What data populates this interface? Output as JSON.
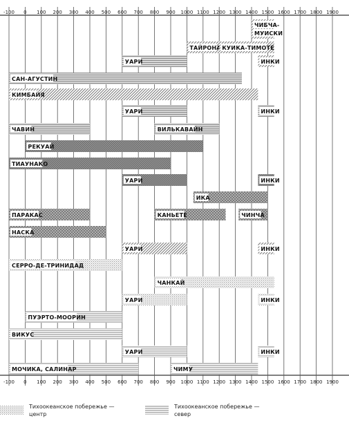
{
  "chart_data": {
    "type": "timeline",
    "x_ticks": [
      -100,
      0,
      100,
      200,
      300,
      400,
      500,
      600,
      700,
      800,
      900,
      1000,
      1100,
      1200,
      1300,
      1400,
      1500,
      1600,
      1700,
      1800,
      1900
    ],
    "rows": [
      {
        "bars": [
          {
            "label": "ЧИБЧА-МУИСКИ",
            "start": 1400,
            "end": 1540,
            "pattern": "hatch"
          }
        ]
      },
      {
        "bars": [
          {
            "label": "ТАЙРОНА",
            "start": 1000,
            "end": 1240,
            "pattern": "hatch"
          },
          {
            "label": "КУИКА-ТИМОТЕ",
            "start": 1200,
            "end": 1540,
            "pattern": "hatch"
          }
        ]
      },
      {
        "bars": [
          {
            "label": "УАРИ",
            "start": 600,
            "end": 1000,
            "pattern": "stripes"
          },
          {
            "label": "ИНКИ",
            "start": 1440,
            "end": 1540,
            "pattern": "hatch"
          }
        ]
      },
      {
        "bars": [
          {
            "label": "САН-АГУСТИН",
            "start": -100,
            "end": 1340,
            "pattern": "stripes"
          }
        ]
      },
      {
        "bars": [
          {
            "label": "КИМБАЙЯ",
            "start": -100,
            "end": 1440,
            "pattern": "hatch"
          }
        ]
      },
      {
        "bars": [
          {
            "label": "УАРИ",
            "start": 600,
            "end": 1000,
            "pattern": "stripes"
          },
          {
            "label": "ИНКИ",
            "start": 1440,
            "end": 1540,
            "pattern": "stripes"
          }
        ]
      },
      {
        "bars": [
          {
            "label": "ЧАВИН",
            "start": -100,
            "end": 400,
            "pattern": "stripes"
          },
          {
            "label": "ВИЛЬКАВАЙН",
            "start": 800,
            "end": 1200,
            "pattern": "stripes"
          }
        ]
      },
      {
        "bars": [
          {
            "label": "РЕКУАЙ",
            "start": 0,
            "end": 1100,
            "pattern": "dark"
          }
        ]
      },
      {
        "bars": [
          {
            "label": "ТИАУНАКО",
            "start": -100,
            "end": 900,
            "pattern": "dark"
          }
        ]
      },
      {
        "bars": [
          {
            "label": "УАРИ",
            "start": 600,
            "end": 1000,
            "pattern": "dark"
          },
          {
            "label": "ИНКИ",
            "start": 1440,
            "end": 1540,
            "pattern": "dark"
          }
        ]
      },
      {
        "bars": [
          {
            "label": "ИКА",
            "start": 1040,
            "end": 1500,
            "pattern": "checker"
          }
        ]
      },
      {
        "bars": [
          {
            "label": "ПАРАКАС",
            "start": -100,
            "end": 400,
            "pattern": "checker"
          },
          {
            "label": "КАНЬЕТЕ",
            "start": 800,
            "end": 1240,
            "pattern": "checker"
          },
          {
            "label": "ЧИНЧА",
            "start": 1320,
            "end": 1500,
            "pattern": "checker"
          }
        ]
      },
      {
        "bars": [
          {
            "label": "НАСКА",
            "start": -100,
            "end": 500,
            "pattern": "checker"
          }
        ]
      },
      {
        "bars": [
          {
            "label": "УАРИ",
            "start": 600,
            "end": 1000,
            "pattern": "hatch"
          },
          {
            "label": "ИНКИ",
            "start": 1440,
            "end": 1540,
            "pattern": "hatch"
          }
        ]
      },
      {
        "bars": [
          {
            "label": "СЕРРО-ДЕ-ТРИНИДАД",
            "start": -100,
            "end": 600,
            "pattern": "dots"
          }
        ]
      },
      {
        "bars": [
          {
            "label": "ЧАНКАЙ",
            "start": 800,
            "end": 1540,
            "pattern": "dots"
          }
        ]
      },
      {
        "bars": [
          {
            "label": "УАРИ",
            "start": 600,
            "end": 1000,
            "pattern": "dots"
          },
          {
            "label": "ИНКИ",
            "start": 1440,
            "end": 1540,
            "pattern": "dots"
          }
        ]
      },
      {
        "bars": [
          {
            "label": "ПУЭРТО-МООРИН",
            "start": 0,
            "end": 600,
            "pattern": "lines"
          }
        ]
      },
      {
        "bars": [
          {
            "label": "ВИКУС",
            "start": -100,
            "end": 600,
            "pattern": "lines"
          }
        ]
      },
      {
        "bars": [
          {
            "label": "УАРИ",
            "start": 600,
            "end": 1000,
            "pattern": "lines"
          },
          {
            "label": "ИНКИ",
            "start": 1440,
            "end": 1540,
            "pattern": "lines"
          }
        ]
      },
      {
        "bars": [
          {
            "label": "МОЧИКА, САЛИНАР",
            "start": -100,
            "end": 700,
            "pattern": "lines"
          },
          {
            "label": "ЧИМУ",
            "start": 900,
            "end": 1440,
            "pattern": "lines"
          }
        ]
      }
    ],
    "row_y_top": [
      28,
      60,
      80,
      105,
      128,
      152,
      178,
      203,
      228,
      252,
      277,
      302,
      327,
      351,
      375,
      400,
      425,
      450,
      475,
      500,
      525
    ],
    "legend": [
      {
        "label": "Тихоокеанское побережье — центр",
        "pattern": "dots"
      },
      {
        "label": "Тихоокеанское побережье — север",
        "pattern": "lines"
      }
    ]
  }
}
